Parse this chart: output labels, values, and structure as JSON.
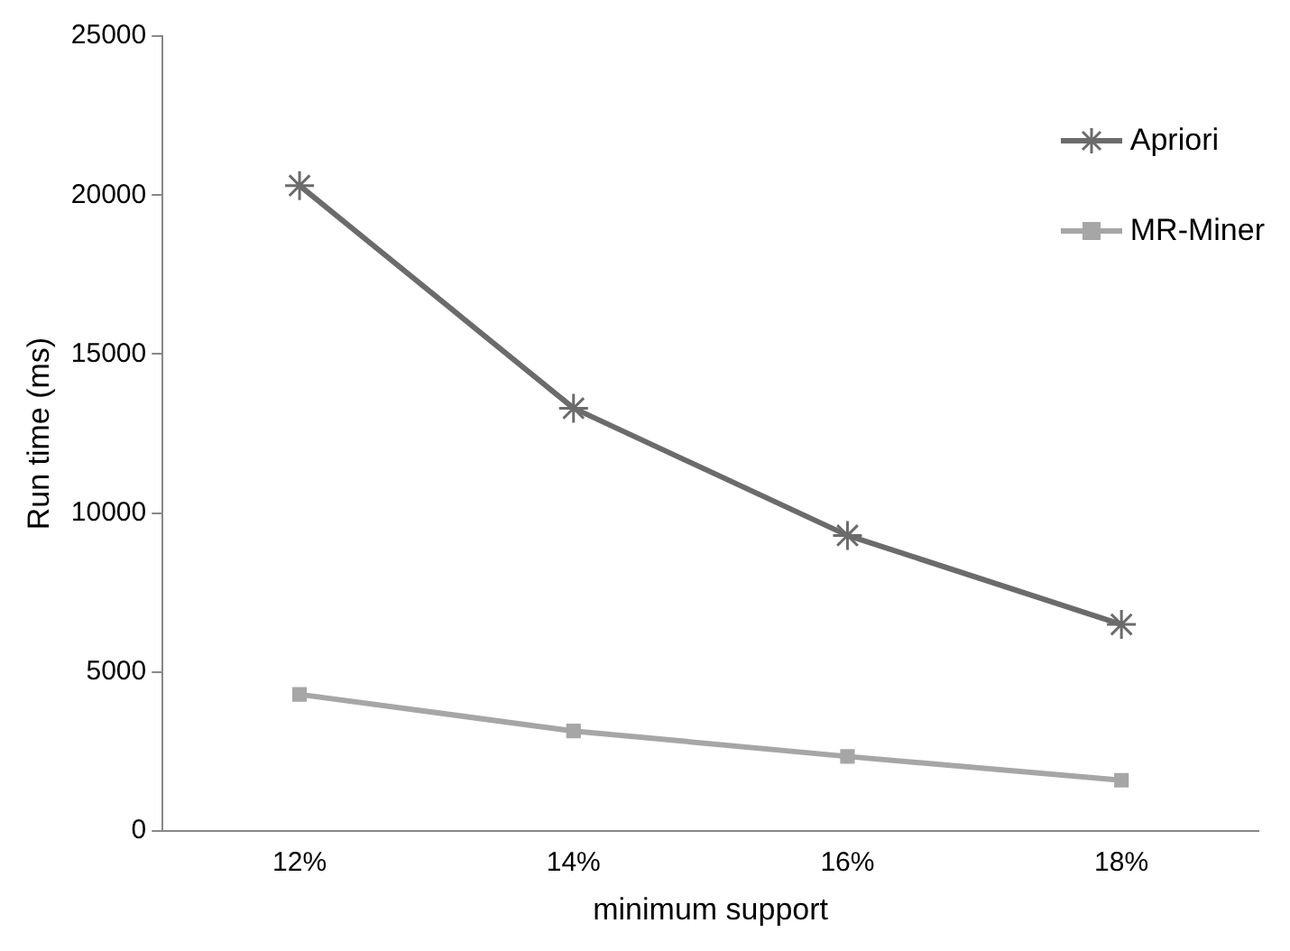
{
  "chart_data": {
    "type": "line",
    "xlabel": "minimum support",
    "ylabel": "Run time (ms)",
    "categories": [
      "12%",
      "14%",
      "16%",
      "18%"
    ],
    "series": [
      {
        "name": "Apriori",
        "color": "#6b6b6b",
        "marker": "cross",
        "values": [
          20300,
          13300,
          9300,
          6500
        ]
      },
      {
        "name": "MR-Miner",
        "color": "#a6a6a6",
        "marker": "square",
        "values": [
          4300,
          3150,
          2350,
          1600
        ]
      }
    ],
    "ylim": [
      0,
      25000
    ],
    "yticks": [
      0,
      5000,
      10000,
      15000,
      20000,
      25000
    ],
    "grid": false,
    "legend": "top right"
  }
}
